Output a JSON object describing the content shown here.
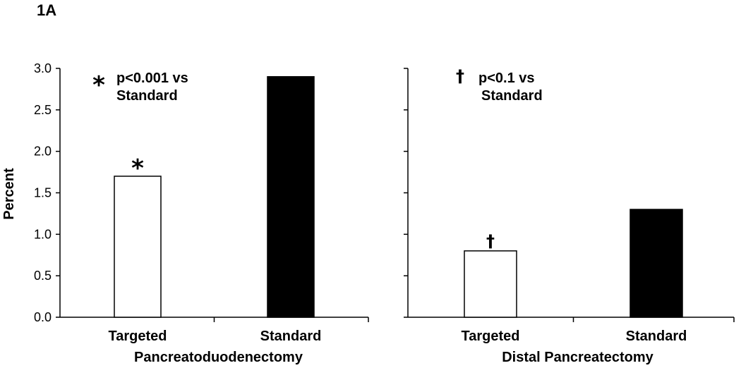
{
  "figure_label": "1A",
  "chart_data": [
    {
      "type": "bar",
      "group_label": "Pancreatoduodenectomy",
      "categories": [
        "Targeted",
        "Standard"
      ],
      "values": [
        1.7,
        2.9
      ],
      "bar_colors": [
        "#ffffff",
        "#000000"
      ],
      "ylabel": "Percent",
      "ylim": [
        0,
        3.0
      ],
      "yticks": [
        "0.0",
        "0.5",
        "1.0",
        "1.5",
        "2.0",
        "2.5",
        "3.0"
      ],
      "significance": {
        "category": "Targeted",
        "symbol": "*"
      },
      "annotation": {
        "symbol": "*",
        "line1": "p<0.001 vs",
        "line2": "Standard"
      }
    },
    {
      "type": "bar",
      "group_label": "Distal Pancreatectomy",
      "categories": [
        "Targeted",
        "Standard"
      ],
      "values": [
        0.8,
        1.3
      ],
      "bar_colors": [
        "#ffffff",
        "#000000"
      ],
      "ylim": [
        0,
        3.0
      ],
      "significance": {
        "category": "Targeted",
        "symbol": "†"
      },
      "annotation": {
        "symbol": "†",
        "line1": "p<0.1 vs",
        "line2": "Standard"
      }
    }
  ]
}
